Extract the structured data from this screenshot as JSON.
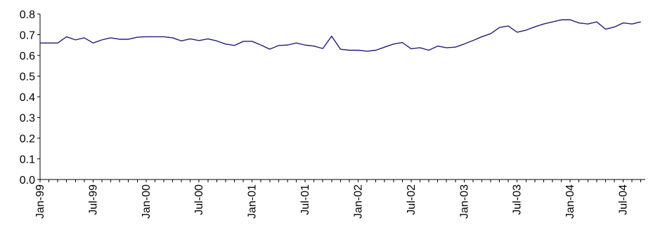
{
  "chart_data": {
    "type": "line",
    "title": "",
    "xlabel": "",
    "ylabel": "",
    "ylim": [
      0,
      0.8
    ],
    "y_ticks": [
      "0.0",
      "0.1",
      "0.2",
      "0.3",
      "0.4",
      "0.5",
      "0.6",
      "0.7",
      "0.8"
    ],
    "x_ticks": [
      "Jan-99",
      "Jul-99",
      "Jan-00",
      "Jul-00",
      "Jan-01",
      "Jul-01",
      "Jan-02",
      "Jul-02",
      "Jan-03",
      "Jul-03",
      "Jan-04",
      "Jul-04"
    ],
    "grid": false,
    "legend": "none",
    "line_color": "#1f1f7a",
    "series": [
      {
        "x": [
          "Jan-99",
          "Feb-99",
          "Mar-99",
          "Apr-99",
          "May-99",
          "Jun-99",
          "Jul-99",
          "Aug-99",
          "Sep-99",
          "Oct-99",
          "Nov-99",
          "Dec-99",
          "Jan-00",
          "Feb-00",
          "Mar-00",
          "Apr-00",
          "May-00",
          "Jun-00",
          "Jul-00",
          "Aug-00",
          "Sep-00",
          "Oct-00",
          "Nov-00",
          "Dec-00",
          "Jan-01",
          "Feb-01",
          "Mar-01",
          "Apr-01",
          "May-01",
          "Jun-01",
          "Jul-01",
          "Aug-01",
          "Sep-01",
          "Oct-01",
          "Nov-01",
          "Dec-01",
          "Jan-02",
          "Feb-02",
          "Mar-02",
          "Apr-02",
          "May-02",
          "Jun-02",
          "Jul-02",
          "Aug-02",
          "Sep-02",
          "Oct-02",
          "Nov-02",
          "Dec-02",
          "Jan-03",
          "Feb-03",
          "Mar-03",
          "Apr-03",
          "May-03",
          "Jun-03",
          "Jul-03",
          "Aug-03",
          "Sep-03",
          "Oct-03",
          "Nov-03",
          "Dec-03",
          "Jan-04",
          "Feb-04",
          "Mar-04",
          "Apr-04",
          "May-04",
          "Jun-04",
          "Jul-04",
          "Aug-04",
          "Sep-04"
        ],
        "values": [
          0.66,
          0.66,
          0.66,
          0.69,
          0.675,
          0.685,
          0.66,
          0.675,
          0.685,
          0.678,
          0.678,
          0.688,
          0.69,
          0.69,
          0.69,
          0.685,
          0.67,
          0.68,
          0.672,
          0.68,
          0.67,
          0.655,
          0.648,
          0.668,
          0.668,
          0.65,
          0.63,
          0.648,
          0.65,
          0.66,
          0.65,
          0.645,
          0.633,
          0.693,
          0.63,
          0.625,
          0.625,
          0.62,
          0.625,
          0.64,
          0.655,
          0.662,
          0.632,
          0.637,
          0.625,
          0.645,
          0.637,
          0.64,
          0.655,
          0.672,
          0.69,
          0.705,
          0.735,
          0.742,
          0.712,
          0.722,
          0.738,
          0.752,
          0.762,
          0.772,
          0.772,
          0.757,
          0.752,
          0.762,
          0.727,
          0.737,
          0.757,
          0.752,
          0.762
        ]
      }
    ]
  }
}
